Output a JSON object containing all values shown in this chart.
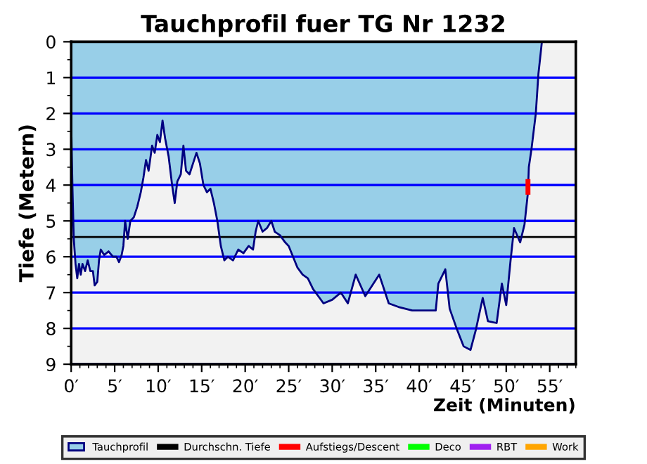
{
  "chart_data": {
    "type": "area",
    "title": "Tauchprofil fuer TG Nr 1232",
    "xlabel": "Zeit (Minuten)",
    "ylabel": "Tiefe (Metern)",
    "xlim": [
      0,
      58
    ],
    "ylim": [
      9,
      0
    ],
    "xticks": [
      {
        "value": 0,
        "label": "0′"
      },
      {
        "value": 5,
        "label": "5′"
      },
      {
        "value": 10,
        "label": "10′"
      },
      {
        "value": 15,
        "label": "15′"
      },
      {
        "value": 20,
        "label": "20′"
      },
      {
        "value": 25,
        "label": "25′"
      },
      {
        "value": 30,
        "label": "30′"
      },
      {
        "value": 35,
        "label": "35′"
      },
      {
        "value": 40,
        "label": "40′"
      },
      {
        "value": 45,
        "label": "45′"
      },
      {
        "value": 50,
        "label": "50′"
      },
      {
        "value": 55,
        "label": "55′"
      }
    ],
    "yticks": [
      0,
      1,
      2,
      3,
      4,
      5,
      6,
      7,
      8,
      9
    ],
    "grid": "y",
    "legend": "bottom",
    "ref_lines": [
      {
        "axis": "y",
        "value": 5.45,
        "label": "Durchschn. Tiefe",
        "color": "#000000"
      }
    ],
    "series": [
      {
        "name": "Tauchprofil",
        "color": "#98cfe8",
        "x": [
          0,
          0.15,
          0.3,
          0.5,
          0.7,
          0.9,
          1.1,
          1.3,
          1.6,
          1.9,
          2.2,
          2.5,
          2.7,
          3.0,
          3.2,
          3.4,
          3.8,
          4.3,
          4.8,
          5.2,
          5.5,
          5.8,
          6.0,
          6.2,
          6.5,
          6.8,
          7.2,
          7.6,
          8.0,
          8.3,
          8.6,
          8.9,
          9.3,
          9.6,
          9.9,
          10.2,
          10.5,
          10.8,
          11.2,
          11.6,
          11.9,
          12.2,
          12.6,
          12.9,
          13.2,
          13.6,
          14.0,
          14.4,
          14.8,
          15.2,
          15.6,
          16.0,
          16.4,
          16.8,
          17.2,
          17.6,
          18.0,
          18.6,
          19.2,
          19.8,
          20.4,
          20.9,
          21.2,
          21.5,
          22.0,
          22.5,
          23.0,
          23.4,
          24.0,
          24.6,
          25.0,
          25.5,
          26.0,
          26.6,
          27.2,
          27.8,
          28.4,
          29.0,
          30.0,
          31.0,
          31.8,
          32.7,
          33.8,
          35.4,
          36.5,
          37.6,
          39.2,
          41.9,
          42.2,
          43.0,
          43.5,
          44.3,
          45.1,
          45.9,
          46.5,
          47.3,
          47.9,
          48.9,
          49.5,
          50.0,
          50.5,
          50.9,
          51.6,
          52.1,
          52.5,
          52.6,
          52.9,
          53.4,
          53.7,
          54.1
        ],
        "values": [
          2.2,
          4.1,
          5.5,
          6.2,
          6.6,
          6.2,
          6.5,
          6.2,
          6.4,
          6.1,
          6.4,
          6.4,
          6.8,
          6.7,
          6.1,
          5.8,
          5.95,
          5.85,
          6.0,
          6.0,
          6.15,
          5.95,
          5.7,
          5.0,
          5.5,
          5.0,
          4.9,
          4.6,
          4.2,
          3.8,
          3.3,
          3.6,
          2.9,
          3.1,
          2.6,
          2.8,
          2.2,
          2.7,
          3.2,
          4.0,
          4.5,
          3.9,
          3.7,
          2.9,
          3.6,
          3.7,
          3.4,
          3.1,
          3.4,
          4.0,
          4.2,
          4.1,
          4.5,
          5.0,
          5.7,
          6.1,
          6.0,
          6.1,
          5.8,
          5.9,
          5.7,
          5.8,
          5.3,
          5.0,
          5.3,
          5.2,
          5.0,
          5.3,
          5.4,
          5.6,
          5.7,
          6.0,
          6.3,
          6.5,
          6.6,
          6.9,
          7.1,
          7.3,
          7.2,
          7.0,
          7.3,
          6.5,
          7.1,
          6.5,
          7.3,
          7.4,
          7.5,
          7.5,
          6.75,
          6.35,
          7.45,
          8.0,
          8.5,
          8.6,
          8.05,
          7.15,
          7.8,
          7.85,
          6.75,
          7.35,
          6.1,
          5.2,
          5.6,
          5.1,
          4.2,
          3.5,
          3.0,
          2.0,
          0.9,
          0
        ]
      },
      {
        "name": "Aufstiegs/Descent",
        "type": "line",
        "color": "#ff0000",
        "x": [
          52.5,
          52.5
        ],
        "values": [
          3.9,
          4.2
        ]
      },
      {
        "name": "Deco",
        "type": "line",
        "color": "#00ff00"
      },
      {
        "name": "RBT",
        "type": "line",
        "color": "#a020f0"
      },
      {
        "name": "Work",
        "type": "line",
        "color": "#ffa500"
      }
    ]
  }
}
